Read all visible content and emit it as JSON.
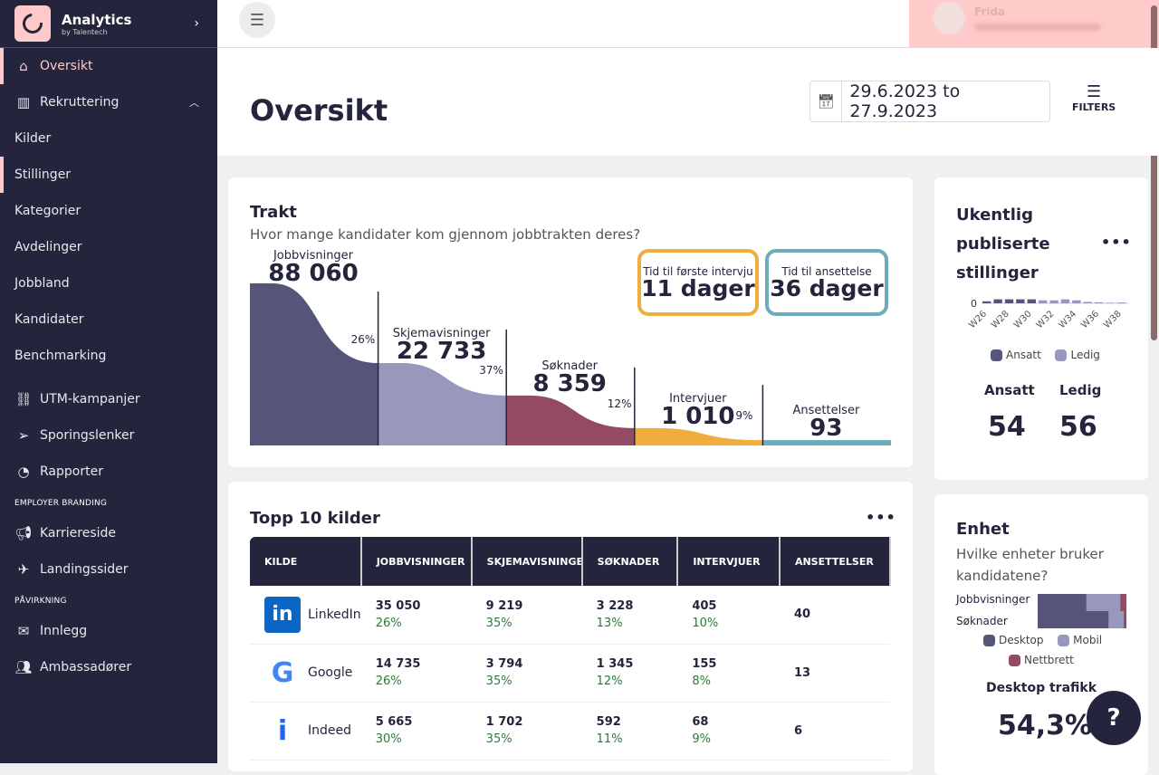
{
  "app": {
    "title": "Analytics",
    "subtitle": "by Talentech"
  },
  "user": {
    "name": "Frida"
  },
  "sidebar": {
    "items": [
      {
        "label": "Oversikt",
        "icon": "home-icon"
      },
      {
        "label": "Rekruttering",
        "icon": "bar-chart-icon"
      },
      {
        "label": "Kilder"
      },
      {
        "label": "Stillinger"
      },
      {
        "label": "Kategorier"
      },
      {
        "label": "Avdelinger"
      },
      {
        "label": "Jobbland"
      },
      {
        "label": "Kandidater"
      },
      {
        "label": "Benchmarking"
      },
      {
        "label": "UTM-kampanjer",
        "icon": "link-icon"
      },
      {
        "label": "Sporingslenker",
        "icon": "send-icon"
      },
      {
        "label": "Rapporter",
        "icon": "pie-icon"
      }
    ],
    "section_employer": "EMPLOYER BRANDING",
    "employer": [
      {
        "label": "Karriereside"
      },
      {
        "label": "Landingssider"
      }
    ],
    "section_influence": "PÅVIRKNING",
    "influence": [
      {
        "label": "Innlegg"
      },
      {
        "label": "Ambassadører"
      }
    ]
  },
  "header": {
    "title": "Oversikt",
    "date_range": "29.6.2023 to 27.9.2023",
    "filters": "FILTERS"
  },
  "funnel": {
    "title": "Trakt",
    "subtitle": "Hvor mange kandidater kom gjennom jobbtrakten deres?",
    "stages": [
      {
        "label": "Jobbvisninger",
        "value": 88060,
        "display": "88 060",
        "color": "#55557a"
      },
      {
        "label": "Skjemavisninger",
        "value": 22733,
        "display": "22 733",
        "color": "#9898bd",
        "pct": "26%"
      },
      {
        "label": "Søknader",
        "value": 8359,
        "display": "8 359",
        "color": "#944a62",
        "pct": "37%"
      },
      {
        "label": "Intervjuer",
        "value": 1010,
        "display": "1 010",
        "color": "#f0ad3e",
        "pct": "12%"
      },
      {
        "label": "Ansettelser",
        "value": 93,
        "display": "93",
        "color": "#6aacbb",
        "pct": "9%"
      }
    ],
    "badges": [
      {
        "label": "Tid til første intervju",
        "value": "11 dager",
        "color": "#f0ad3e"
      },
      {
        "label": "Tid til ansettelse",
        "value": "36 dager",
        "color": "#6aacbb"
      }
    ]
  },
  "weekly": {
    "title": "Ukentlig publiserte stillinger",
    "chart_data": {
      "type": "bar",
      "stacked": true,
      "categories": [
        "W26",
        "W27",
        "W28",
        "W29",
        "W30",
        "W31",
        "W32",
        "W33",
        "W34",
        "W35",
        "W36",
        "W37",
        "W38"
      ],
      "tick_labels": [
        "W26",
        "W28",
        "W30",
        "W32",
        "W34",
        "W36",
        "W38"
      ],
      "y_tick": "0",
      "series": [
        {
          "name": "Ansatt",
          "color": "#55557a",
          "values": [
            1,
            2,
            2,
            2,
            2,
            0,
            0,
            0,
            0,
            0,
            0,
            0,
            0
          ]
        },
        {
          "name": "Ledig",
          "color": "#9898bd",
          "values": [
            0,
            0,
            0,
            0,
            0,
            1.5,
            1.5,
            2,
            1.5,
            0.7,
            0.5,
            0.3,
            0.4
          ]
        }
      ]
    },
    "stats": [
      {
        "label": "Ansatt",
        "value": "54"
      },
      {
        "label": "Ledig",
        "value": "56"
      }
    ]
  },
  "sources": {
    "title": "Topp 10 kilder",
    "columns": [
      "KILDE",
      "JOBBVISNINGER",
      "SKJEMAVISNINGER",
      "SØKNADER",
      "INTERVJUER",
      "ANSETTELSER"
    ],
    "rows": [
      {
        "name": "LinkedIn",
        "jv": "35 050",
        "jvp": "26%",
        "sv": "9 219",
        "svp": "35%",
        "s": "3 228",
        "sp": "13%",
        "i": "405",
        "ip": "10%",
        "a": "40"
      },
      {
        "name": "Google",
        "jv": "14 735",
        "jvp": "26%",
        "sv": "3 794",
        "svp": "35%",
        "s": "1 345",
        "sp": "12%",
        "i": "155",
        "ip": "8%",
        "a": "13"
      },
      {
        "name": "Indeed",
        "jv": "5 665",
        "jvp": "30%",
        "sv": "1 702",
        "svp": "35%",
        "s": "592",
        "sp": "11%",
        "i": "68",
        "ip": "9%",
        "a": "6"
      }
    ]
  },
  "device": {
    "title": "Enhet",
    "subtitle": "Hvilke enheter bruker kandidatene?",
    "chart_data": {
      "type": "bar",
      "stacked": true,
      "orientation": "horizontal",
      "categories": [
        "Jobbvisninger",
        "Søknader"
      ],
      "series": [
        {
          "name": "Desktop",
          "color": "#55557a",
          "values": [
            55,
            80
          ]
        },
        {
          "name": "Mobil",
          "color": "#9898bd",
          "values": [
            38,
            17
          ]
        },
        {
          "name": "Nettbrett",
          "color": "#944a62",
          "values": [
            7,
            3
          ]
        }
      ]
    },
    "stat_label": "Desktop trafikk",
    "stat_value": "54,3%"
  }
}
